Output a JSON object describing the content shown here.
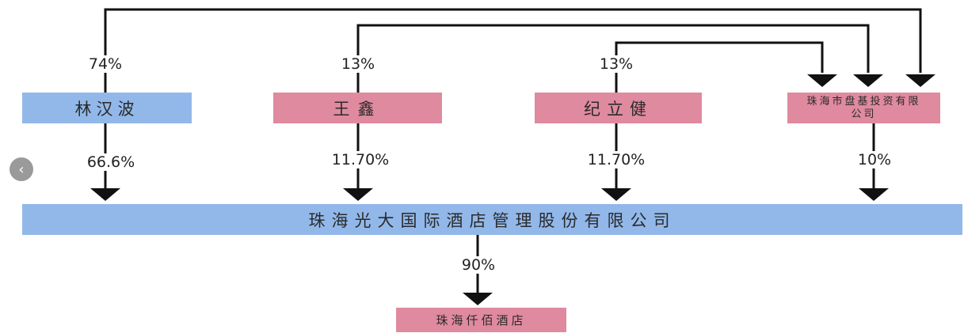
{
  "nodes": {
    "lin_hanbo": "林汉波",
    "wang_xin": "王鑫",
    "ji_lijian": "纪立健",
    "zhuhai_panji": "珠海市盘基投资有限公司",
    "guangda_mgmt": "珠海光大国际酒店管理股份有限公司",
    "qianbai_hotel": "珠海仟佰酒店"
  },
  "edges": {
    "lin_to_panji": "74%",
    "wang_to_panji": "13%",
    "ji_to_panji": "13%",
    "lin_to_guangda": "66.6%",
    "wang_to_guangda": "11.70%",
    "ji_to_guangda": "11.70%",
    "panji_to_guangda": "10%",
    "guangda_to_qianbai": "90%"
  },
  "colors": {
    "blue": "#92b8ea",
    "pink": "#e08a9f",
    "line": "#111111"
  },
  "icons": {
    "back": "chevron-left-icon"
  }
}
